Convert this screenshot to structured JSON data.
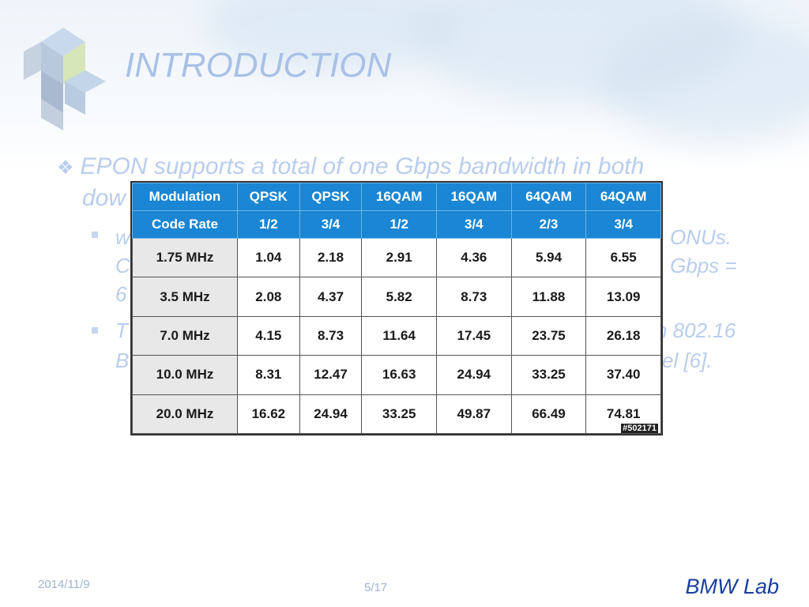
{
  "slide": {
    "title": "INTRODUCTION",
    "bullet_main": "EPON supports a total of one Gbps bandwidth in both",
    "bullet_main_cont": "dow",
    "sub1_start": "w",
    "sub1_right": "ONUs.",
    "sub1_line2_start": "C",
    "sub1_line2_right": "Gbps =",
    "sub1_line3_start": "6",
    "sub2_start": "T",
    "sub2_right": "n 802.16",
    "sub2_line2_start": "B",
    "sub2_line2_right": "el [6]."
  },
  "table": {
    "header_row1": [
      "Modulation",
      "QPSK",
      "QPSK",
      "16QAM",
      "16QAM",
      "64QAM",
      "64QAM"
    ],
    "header_row2": [
      "Code Rate",
      "1/2",
      "3/4",
      "1/2",
      "3/4",
      "2/3",
      "3/4"
    ],
    "rows": [
      [
        "1.75 MHz",
        "1.04",
        "2.18",
        "2.91",
        "4.36",
        "5.94",
        "6.55"
      ],
      [
        "3.5 MHz",
        "2.08",
        "4.37",
        "5.82",
        "8.73",
        "11.88",
        "13.09"
      ],
      [
        "7.0 MHz",
        "4.15",
        "8.73",
        "11.64",
        "17.45",
        "23.75",
        "26.18"
      ],
      [
        "10.0 MHz",
        "8.31",
        "12.47",
        "16.63",
        "24.94",
        "33.25",
        "37.40"
      ],
      [
        "20.0 MHz",
        "16.62",
        "24.94",
        "33.25",
        "49.87",
        "66.49",
        "74.81"
      ]
    ],
    "stamp": "#502171"
  },
  "footer": {
    "date": "2014/11/9",
    "page": "5/17",
    "lab": "BMW Lab"
  },
  "colors": {
    "title": "#a9c1e6",
    "header_bg": "#1a86d4",
    "lab_text": "#1a3f9e"
  }
}
